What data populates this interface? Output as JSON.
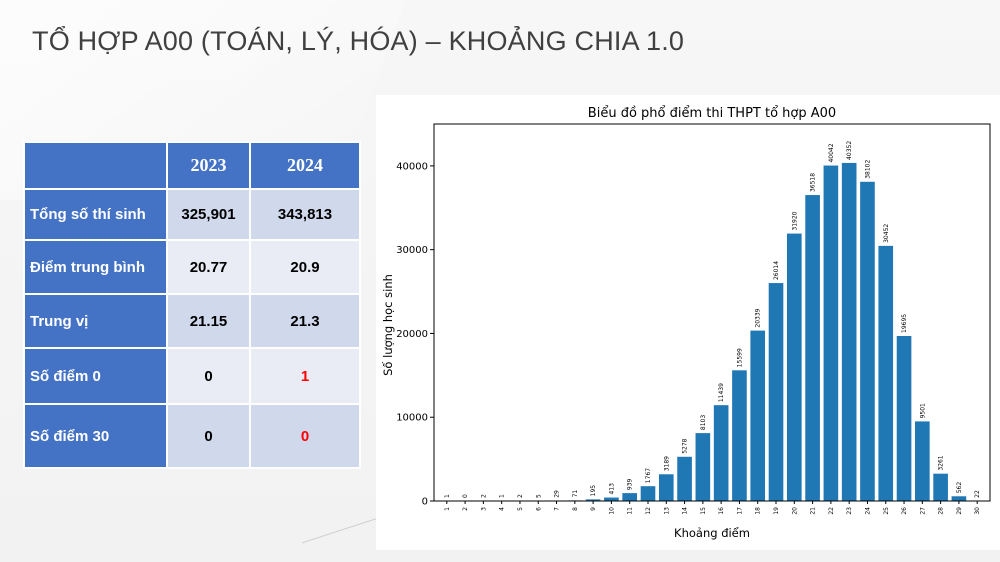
{
  "slide": {
    "title": "TỔ HỢP A00 (TOÁN, LÝ, HÓA) – KHOẢNG CHIA 1.0"
  },
  "table": {
    "headers": [
      "",
      "2023",
      "2024"
    ],
    "rows": [
      {
        "label": "Tổng số thí sinh",
        "v2023": "325,901",
        "v2024": "343,813"
      },
      {
        "label": "Điểm trung bình",
        "v2023": "20.77",
        "v2024": "20.9"
      },
      {
        "label": "Trung vị",
        "v2023": "21.15",
        "v2024": "21.3"
      },
      {
        "label": "Số điểm 0",
        "v2023": "0",
        "v2024": "1"
      },
      {
        "label": "Số điểm 30",
        "v2023": "0",
        "v2024": "0"
      }
    ],
    "colors": {
      "header_bg": "#4472c4",
      "row_bg_dark": "#d0d8eb",
      "row_bg_light": "#e9ecf5",
      "highlight": "#ff0000"
    }
  },
  "chart_data": {
    "type": "bar",
    "title": "Biểu đồ phổ điểm thi THPT tổ hợp A00",
    "xlabel": "Khoảng điểm",
    "ylabel": "Số lượng học sinh",
    "categories": [
      "1",
      "2",
      "3",
      "4",
      "5",
      "6",
      "7",
      "8",
      "9",
      "10",
      "11",
      "12",
      "13",
      "14",
      "15",
      "16",
      "17",
      "18",
      "19",
      "20",
      "21",
      "22",
      "23",
      "24",
      "25",
      "26",
      "27",
      "28",
      "29",
      "30"
    ],
    "values": [
      1,
      0,
      2,
      1,
      2,
      5,
      29,
      71,
      195,
      413,
      939,
      1767,
      3189,
      5278,
      8103,
      11439,
      15599,
      20339,
      26014,
      31920,
      36518,
      40042,
      40352,
      38102,
      30452,
      19695,
      9501,
      3261,
      562,
      22
    ],
    "data_labels": [
      "1",
      "0",
      "2",
      "1",
      "2",
      "5",
      "29",
      "71",
      "195",
      "413",
      "939",
      "1767",
      "3189",
      "5278",
      "8103",
      "11439",
      "15599",
      "20339",
      "26014",
      "31920",
      "36518",
      "40042",
      "40352",
      "38102",
      "30452",
      "19695",
      "9501",
      "3261",
      "562",
      "22"
    ],
    "y_ticks": [
      "0",
      "10000",
      "20000",
      "30000",
      "40000"
    ],
    "y_tick_values": [
      0,
      10000,
      20000,
      30000,
      40000
    ],
    "ylim": [
      0,
      45000
    ],
    "grid": false,
    "bar_color": "#1f77b4"
  }
}
